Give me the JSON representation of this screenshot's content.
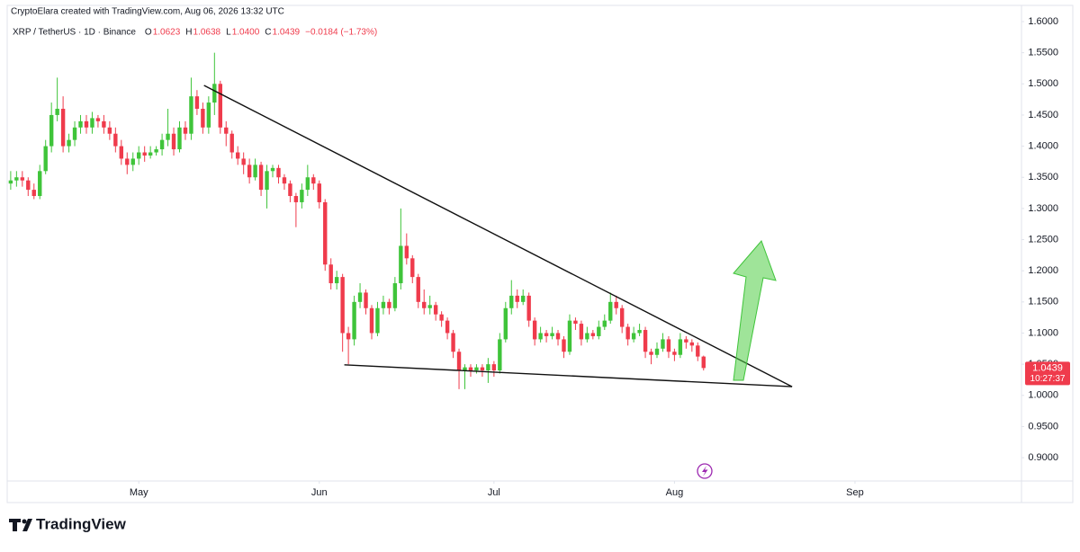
{
  "chart_data": {
    "type": "candlestick",
    "credit": "CryptoElara created with TradingView.com, Aug 06, 2026 13:32 UTC",
    "symbol": "XRP / TetherUS · 1D · Binance",
    "header": [
      {
        "label": "O",
        "value": "1.0623"
      },
      {
        "label": "H",
        "value": "1.0638"
      },
      {
        "label": "L",
        "value": "1.0400"
      },
      {
        "label": "C",
        "value": "1.0439"
      }
    ],
    "change": "−0.0184 (−1.73%)",
    "countdown": "10:27:37",
    "brand": "TradingView",
    "up_color": "#3fc43a",
    "down_color": "#ef3b4c",
    "line_color": "#111111",
    "open": [
      1.34,
      1.345,
      1.35,
      1.345,
      1.33,
      1.32,
      1.36,
      1.4,
      1.45,
      1.46,
      1.4,
      1.41,
      1.43,
      1.44,
      1.43,
      1.445,
      1.44,
      1.43,
      1.42,
      1.4,
      1.38,
      1.37,
      1.38,
      1.39,
      1.385,
      1.39,
      1.395,
      1.41,
      1.42,
      1.395,
      1.43,
      1.42,
      1.48,
      1.46,
      1.43,
      1.47,
      1.5,
      1.43,
      1.42,
      1.39,
      1.38,
      1.37,
      1.35,
      1.37,
      1.33,
      1.36,
      1.365,
      1.35,
      1.34,
      1.32,
      1.31,
      1.33,
      1.35,
      1.34,
      1.31,
      1.21,
      1.18,
      1.19,
      1.1,
      1.09,
      1.15,
      1.165,
      1.14,
      1.1,
      1.14,
      1.15,
      1.14,
      1.18,
      1.24,
      1.22,
      1.19,
      1.15,
      1.14,
      1.145,
      1.13,
      1.12,
      1.1,
      1.07,
      1.04,
      1.045,
      1.04,
      1.045,
      1.04,
      1.05,
      1.04,
      1.09,
      1.14,
      1.16,
      1.15,
      1.16,
      1.12,
      1.09,
      1.1,
      1.095,
      1.1,
      1.09,
      1.07,
      1.12,
      1.115,
      1.09,
      1.1,
      1.095,
      1.11,
      1.12,
      1.15,
      1.14,
      1.11,
      1.09,
      1.1,
      1.105,
      1.07,
      1.065,
      1.075,
      1.09,
      1.07,
      1.065,
      1.09,
      1.085,
      1.08,
      1.0623
    ],
    "high": [
      1.36,
      1.36,
      1.36,
      1.35,
      1.34,
      1.37,
      1.41,
      1.47,
      1.51,
      1.48,
      1.42,
      1.44,
      1.45,
      1.45,
      1.455,
      1.45,
      1.45,
      1.44,
      1.43,
      1.41,
      1.39,
      1.39,
      1.4,
      1.4,
      1.4,
      1.4,
      1.42,
      1.46,
      1.43,
      1.44,
      1.44,
      1.51,
      1.49,
      1.47,
      1.48,
      1.55,
      1.505,
      1.44,
      1.425,
      1.4,
      1.39,
      1.38,
      1.38,
      1.375,
      1.37,
      1.37,
      1.37,
      1.355,
      1.345,
      1.325,
      1.34,
      1.37,
      1.355,
      1.345,
      1.315,
      1.22,
      1.2,
      1.195,
      1.11,
      1.16,
      1.18,
      1.17,
      1.145,
      1.15,
      1.16,
      1.155,
      1.19,
      1.3,
      1.26,
      1.225,
      1.195,
      1.17,
      1.16,
      1.15,
      1.135,
      1.125,
      1.105,
      1.075,
      1.05,
      1.05,
      1.05,
      1.05,
      1.06,
      1.055,
      1.1,
      1.15,
      1.185,
      1.17,
      1.17,
      1.165,
      1.125,
      1.11,
      1.105,
      1.11,
      1.105,
      1.095,
      1.13,
      1.125,
      1.12,
      1.11,
      1.105,
      1.12,
      1.13,
      1.165,
      1.16,
      1.145,
      1.115,
      1.11,
      1.115,
      1.11,
      1.075,
      1.085,
      1.1,
      1.095,
      1.075,
      1.1,
      1.095,
      1.09,
      1.085,
      1.0638
    ],
    "low": [
      1.33,
      1.335,
      1.335,
      1.32,
      1.315,
      1.315,
      1.355,
      1.39,
      1.44,
      1.39,
      1.39,
      1.4,
      1.42,
      1.42,
      1.42,
      1.43,
      1.42,
      1.41,
      1.39,
      1.37,
      1.355,
      1.36,
      1.37,
      1.375,
      1.38,
      1.385,
      1.385,
      1.4,
      1.385,
      1.39,
      1.41,
      1.41,
      1.45,
      1.42,
      1.42,
      1.45,
      1.42,
      1.4,
      1.38,
      1.37,
      1.355,
      1.34,
      1.345,
      1.32,
      1.3,
      1.35,
      1.34,
      1.33,
      1.31,
      1.27,
      1.3,
      1.32,
      1.33,
      1.3,
      1.2,
      1.17,
      1.17,
      1.07,
      1.05,
      1.08,
      1.14,
      1.13,
      1.09,
      1.095,
      1.13,
      1.13,
      1.135,
      1.17,
      1.21,
      1.18,
      1.14,
      1.13,
      1.13,
      1.12,
      1.11,
      1.09,
      1.06,
      1.01,
      1.01,
      1.03,
      1.035,
      1.03,
      1.02,
      1.03,
      1.035,
      1.085,
      1.13,
      1.14,
      1.145,
      1.11,
      1.08,
      1.085,
      1.085,
      1.09,
      1.08,
      1.06,
      1.065,
      1.105,
      1.08,
      1.085,
      1.09,
      1.09,
      1.105,
      1.115,
      1.13,
      1.1,
      1.08,
      1.085,
      1.095,
      1.06,
      1.05,
      1.06,
      1.07,
      1.06,
      1.055,
      1.06,
      1.075,
      1.07,
      1.055,
      1.04
    ],
    "close": [
      1.345,
      1.35,
      1.345,
      1.33,
      1.32,
      1.36,
      1.4,
      1.45,
      1.46,
      1.4,
      1.41,
      1.43,
      1.44,
      1.43,
      1.445,
      1.44,
      1.43,
      1.42,
      1.4,
      1.38,
      1.37,
      1.38,
      1.39,
      1.385,
      1.39,
      1.395,
      1.41,
      1.42,
      1.395,
      1.43,
      1.42,
      1.48,
      1.46,
      1.43,
      1.47,
      1.5,
      1.43,
      1.42,
      1.39,
      1.38,
      1.37,
      1.35,
      1.37,
      1.33,
      1.36,
      1.365,
      1.35,
      1.34,
      1.32,
      1.31,
      1.33,
      1.35,
      1.34,
      1.31,
      1.21,
      1.18,
      1.19,
      1.1,
      1.09,
      1.15,
      1.165,
      1.14,
      1.1,
      1.14,
      1.15,
      1.14,
      1.18,
      1.24,
      1.22,
      1.19,
      1.15,
      1.14,
      1.145,
      1.13,
      1.12,
      1.1,
      1.07,
      1.04,
      1.045,
      1.04,
      1.045,
      1.04,
      1.05,
      1.04,
      1.09,
      1.14,
      1.16,
      1.15,
      1.16,
      1.12,
      1.09,
      1.1,
      1.095,
      1.1,
      1.09,
      1.07,
      1.12,
      1.115,
      1.09,
      1.1,
      1.095,
      1.11,
      1.12,
      1.15,
      1.14,
      1.11,
      1.09,
      1.1,
      1.105,
      1.07,
      1.065,
      1.075,
      1.09,
      1.07,
      1.065,
      1.09,
      1.085,
      1.08,
      1.0623,
      1.0439
    ],
    "lines": [
      {
        "x": [
          33.2,
          134.2
        ],
        "y": [
          1.4975,
          1.014
        ]
      },
      {
        "x": [
          57.3,
          134.2
        ],
        "y": [
          1.049,
          1.014
        ]
      }
    ],
    "xlim": [
      -0.6,
      173.6
    ],
    "xticks": [
      {
        "value": 22,
        "label": "May"
      },
      {
        "value": 53,
        "label": "Jun"
      },
      {
        "value": 83,
        "label": "Jul"
      },
      {
        "value": 114,
        "label": "Aug"
      },
      {
        "value": 145,
        "label": "Sep"
      }
    ],
    "ylim": [
      0.8626,
      1.6173
    ],
    "yticks": [
      {
        "value": 1.6,
        "label": "1.6000"
      },
      {
        "value": 1.55,
        "label": "1.5500"
      },
      {
        "value": 1.5,
        "label": "1.5000"
      },
      {
        "value": 1.45,
        "label": "1.4500"
      },
      {
        "value": 1.4,
        "label": "1.4000"
      },
      {
        "value": 1.35,
        "label": "1.3500"
      },
      {
        "value": 1.3,
        "label": "1.3000"
      },
      {
        "value": 1.25,
        "label": "1.2500"
      },
      {
        "value": 1.2,
        "label": "1.2000"
      },
      {
        "value": 1.15,
        "label": "1.1500"
      },
      {
        "value": 1.1,
        "label": "1.1000"
      },
      {
        "value": 1.05,
        "label": "1.0500"
      },
      {
        "value": 1,
        "label": "1.0000"
      },
      {
        "value": 0.95,
        "label": "0.9500"
      },
      {
        "value": 0.9,
        "label": "0.9000"
      }
    ],
    "grid": false
  }
}
